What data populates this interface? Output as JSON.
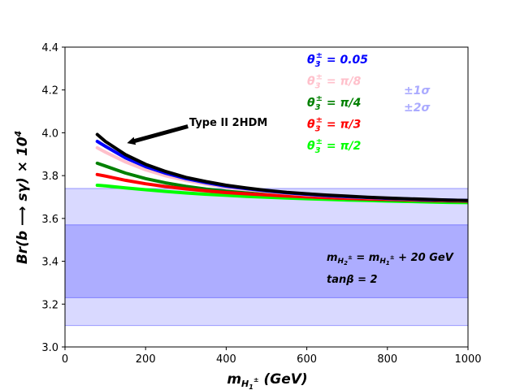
{
  "chart_data": {
    "type": "line",
    "title": "",
    "xlabel": "m_{H1±} (GeV)",
    "ylabel": "Br(b → sγ) × 10^4",
    "xlim": [
      0,
      1000
    ],
    "ylim": [
      3.0,
      4.4
    ],
    "xticks": [
      0,
      200,
      400,
      600,
      800,
      1000
    ],
    "yticks": [
      3.0,
      3.2,
      3.4,
      3.6,
      3.8,
      4.0,
      4.2,
      4.4
    ],
    "x": [
      80,
      100,
      150,
      200,
      250,
      300,
      350,
      400,
      450,
      500,
      550,
      600,
      650,
      700,
      750,
      800,
      850,
      900,
      950,
      1000
    ],
    "series": [
      {
        "name": "θ3± = π/2",
        "color": "#00ff00",
        "values": [
          3.755,
          3.752,
          3.743,
          3.734,
          3.726,
          3.719,
          3.713,
          3.708,
          3.703,
          3.699,
          3.695,
          3.692,
          3.689,
          3.686,
          3.684,
          3.681,
          3.679,
          3.677,
          3.675,
          3.674
        ]
      },
      {
        "name": "θ3± = π/4",
        "color": "#008000",
        "values": [
          3.858,
          3.845,
          3.812,
          3.786,
          3.766,
          3.75,
          3.737,
          3.727,
          3.719,
          3.712,
          3.706,
          3.701,
          3.697,
          3.693,
          3.69,
          3.687,
          3.685,
          3.683,
          3.681,
          3.68
        ]
      },
      {
        "name": "θ3± = π/3",
        "color": "#ff0000",
        "values": [
          3.805,
          3.798,
          3.778,
          3.762,
          3.749,
          3.738,
          3.729,
          3.721,
          3.715,
          3.71,
          3.705,
          3.701,
          3.697,
          3.694,
          3.691,
          3.689,
          3.687,
          3.685,
          3.683,
          3.681
        ]
      },
      {
        "name": "θ3± = π/8",
        "color": "#ffc0cb",
        "values": [
          3.93,
          3.91,
          3.864,
          3.827,
          3.799,
          3.777,
          3.76,
          3.746,
          3.735,
          3.726,
          3.718,
          3.711,
          3.706,
          3.701,
          3.697,
          3.693,
          3.69,
          3.688,
          3.685,
          3.683
        ]
      },
      {
        "name": "θ3± = 0.05",
        "color": "#0000ff",
        "values": [
          3.96,
          3.937,
          3.883,
          3.842,
          3.811,
          3.786,
          3.767,
          3.751,
          3.739,
          3.729,
          3.72,
          3.713,
          3.707,
          3.702,
          3.698,
          3.694,
          3.691,
          3.688,
          3.686,
          3.684
        ]
      },
      {
        "name": "",
        "color": "#000000",
        "values": [
          3.992,
          3.96,
          3.898,
          3.853,
          3.819,
          3.792,
          3.772,
          3.755,
          3.742,
          3.731,
          3.722,
          3.715,
          3.709,
          3.704,
          3.699,
          3.695,
          3.692,
          3.689,
          3.686,
          3.684
        ]
      }
    ],
    "bands": [
      {
        "name": "±2σ",
        "range": [
          3.1,
          3.74
        ],
        "color": "#0000ff",
        "opacity": 0.15
      },
      {
        "name": "±1σ",
        "range": [
          3.23,
          3.57
        ],
        "color": "#0000ff",
        "opacity": 0.2
      }
    ],
    "legend_placement": "top-center",
    "grid": false,
    "annotation": {
      "text": "Type II 2HDM",
      "arrow_to": [
        150,
        3.95
      ],
      "arrow_from": [
        305,
        4.03
      ]
    },
    "notes": [
      "m_{H2±} = m_{H1±} + 20 GeV",
      "tanβ = 2"
    ]
  },
  "legend": {
    "entries": [
      {
        "label": "θ3± = 0.05",
        "color": "#0000ff"
      },
      {
        "label": "θ3± = π/8",
        "color": "#ffc0cb"
      },
      {
        "label": "θ3± = π/4",
        "color": "#008000"
      },
      {
        "label": "θ3± = π/3",
        "color": "#ff0000"
      },
      {
        "label": "θ3± = π/2",
        "color": "#00ff00"
      }
    ],
    "band_labels": [
      "±1σ",
      "±2σ"
    ],
    "band_label_color": "#aaaaff"
  }
}
